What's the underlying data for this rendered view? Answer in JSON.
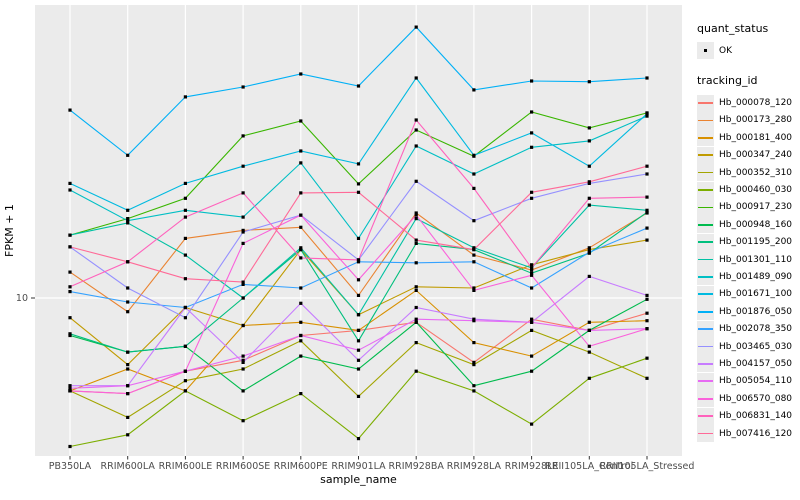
{
  "chart_data": {
    "type": "line",
    "title": "",
    "xlabel": "sample_name",
    "ylabel": "FPKM + 1",
    "y_scale": "log10",
    "y_axis": {
      "tick_labels": [
        "10"
      ],
      "tick_values": [
        10
      ],
      "range_approx": [
        3,
        90
      ]
    },
    "grid": "major-on",
    "legend_position": "right",
    "point_color": "#000000",
    "point_shape": "filled-square",
    "categories": [
      "PB350LA",
      "RRIM600LA",
      "RRIM600LE",
      "RRIM600SE",
      "RRIM600PE",
      "RRIM901LA",
      "RRIM928BA",
      "RRIM928LA",
      "RRIM928LE",
      "RRII105LA_Control",
      "RRII105LA_Stressed"
    ],
    "legend": {
      "quant_status": {
        "title": "quant_status",
        "items": [
          {
            "label": "OK",
            "marker": "black-point"
          }
        ]
      },
      "tracking_id": {
        "title": "tracking_id"
      }
    },
    "series": [
      {
        "name": "Hb_000078_120",
        "color": "#F8766D",
        "values": [
          4.9,
          4.8,
          5.7,
          6.2,
          7.5,
          7.8,
          8.3,
          6.1,
          8.5,
          7.8,
          8.9
        ]
      },
      {
        "name": "Hb_000173_280",
        "color": "#EA8331",
        "values": [
          12.2,
          9.0,
          15.8,
          16.8,
          17.2,
          10.2,
          19.2,
          13.9,
          12.4,
          14.7,
          19.2
        ]
      },
      {
        "name": "Hb_000181_400",
        "color": "#D89000",
        "values": [
          4.9,
          5.8,
          4.9,
          8.1,
          8.3,
          7.8,
          10.6,
          7.1,
          6.4,
          8.3,
          8.4
        ]
      },
      {
        "name": "Hb_000347_240",
        "color": "#C09B00",
        "values": [
          8.6,
          6.0,
          9.3,
          8.1,
          14.5,
          8.8,
          10.9,
          10.8,
          12.9,
          14.5,
          15.6
        ]
      },
      {
        "name": "Hb_000352_310",
        "color": "#A3A500",
        "values": [
          4.9,
          4.0,
          5.3,
          5.8,
          7.2,
          4.7,
          7.1,
          6.0,
          7.8,
          6.6,
          5.4
        ]
      },
      {
        "name": "Hb_000460_030",
        "color": "#7CAE00",
        "values": [
          3.2,
          3.5,
          4.9,
          3.9,
          4.8,
          3.4,
          5.7,
          4.9,
          3.8,
          5.4,
          6.3
        ]
      },
      {
        "name": "Hb_000917_230",
        "color": "#39B600",
        "values": [
          16.2,
          18.4,
          21.5,
          34.7,
          38.9,
          24.0,
          36.3,
          29.7,
          41.7,
          36.9,
          41.4
        ]
      },
      {
        "name": "Hb_000948_160",
        "color": "#00BB4E",
        "values": [
          7.5,
          6.6,
          6.9,
          4.9,
          6.4,
          5.8,
          8.3,
          5.1,
          5.7,
          7.8,
          9.9
        ]
      },
      {
        "name": "Hb_001195_200",
        "color": "#00BF7D",
        "values": [
          7.6,
          6.6,
          6.9,
          10.0,
          14.5,
          7.2,
          15.2,
          14.5,
          12.1,
          14.1,
          19.3
        ]
      },
      {
        "name": "Hb_001301_110",
        "color": "#00C1A3",
        "values": [
          16.2,
          17.8,
          13.9,
          10.0,
          14.7,
          8.8,
          18.4,
          14.7,
          12.6,
          20.4,
          19.6
        ]
      },
      {
        "name": "Hb_001489_090",
        "color": "#00BFC4",
        "values": [
          22.9,
          18.1,
          19.6,
          18.6,
          28.2,
          15.8,
          32.1,
          25.9,
          31.8,
          33.4,
          40.4
        ]
      },
      {
        "name": "Hb_001671_100",
        "color": "#00BAE0",
        "values": [
          24.1,
          19.6,
          24.1,
          27.5,
          30.9,
          28.0,
          54.1,
          29.9,
          35.5,
          27.5,
          41.1
        ]
      },
      {
        "name": "Hb_001876_050",
        "color": "#00B0F6",
        "values": [
          42.3,
          29.9,
          46.8,
          50.5,
          55.8,
          50.9,
          80.0,
          49.4,
          52.9,
          52.6,
          54.1
        ]
      },
      {
        "name": "Hb_002078_350",
        "color": "#35A2FF",
        "values": [
          10.5,
          9.7,
          9.3,
          11.1,
          10.8,
          13.2,
          13.1,
          13.2,
          10.8,
          14.2,
          17.1
        ]
      },
      {
        "name": "Hb_003465_030",
        "color": "#9590FF",
        "values": [
          14.8,
          10.8,
          8.6,
          16.6,
          18.9,
          13.4,
          24.5,
          18.1,
          21.5,
          24.1,
          25.9
        ]
      },
      {
        "name": "Hb_004157_050",
        "color": "#C77CFF",
        "values": [
          5.1,
          5.1,
          9.3,
          6.1,
          9.6,
          6.2,
          9.3,
          8.5,
          8.3,
          11.8,
          10.2
        ]
      },
      {
        "name": "Hb_005054_110",
        "color": "#E76BF3",
        "values": [
          5.0,
          5.1,
          5.7,
          6.4,
          7.5,
          6.7,
          8.5,
          8.4,
          8.3,
          7.8,
          7.9
        ]
      },
      {
        "name": "Hb_006570_080",
        "color": "#FA62DB",
        "values": [
          4.9,
          4.8,
          5.7,
          15.2,
          18.9,
          11.5,
          18.9,
          10.6,
          11.9,
          6.9,
          7.9
        ]
      },
      {
        "name": "Hb_006831_140",
        "color": "#FF62BC",
        "values": [
          10.9,
          13.2,
          18.6,
          22.4,
          13.6,
          13.4,
          39.2,
          23.2,
          12.6,
          21.5,
          21.7
        ]
      },
      {
        "name": "Hb_007416_120",
        "color": "#FF6A98",
        "values": [
          14.8,
          13.2,
          11.6,
          11.3,
          22.4,
          22.5,
          15.6,
          14.5,
          22.5,
          24.4,
          27.5
        ]
      }
    ]
  },
  "colors": {
    "panel_bg": "#EBEBEB",
    "grid": "#FFFFFF",
    "tick_mark": "#333333",
    "tick_text": "#4D4D4D",
    "axis_title_text": "#000000",
    "legend_key_bg": "#EBEBEB"
  }
}
